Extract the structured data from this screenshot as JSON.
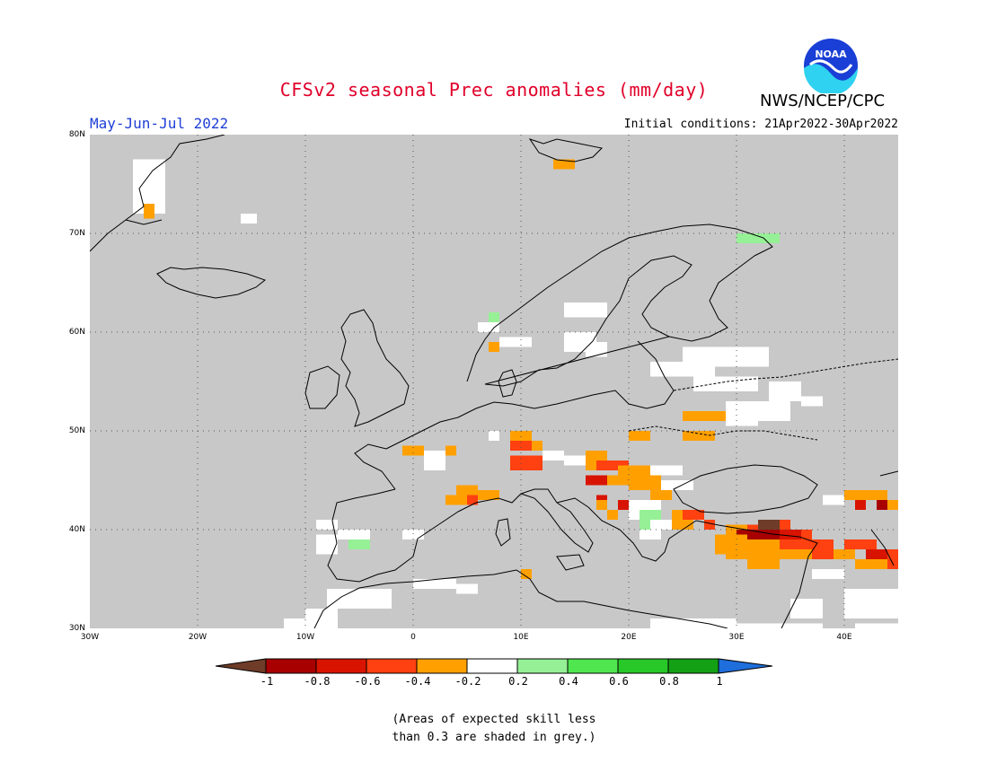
{
  "header": {
    "title": "CFSv2 seasonal Prec anomalies (mm/day)",
    "agency": "NWS/NCEP/CPC",
    "period": "May-Jun-Jul 2022",
    "initial_conditions": "Initial conditions: 21Apr2022-30Apr2022",
    "logo_text": "NOAA"
  },
  "map": {
    "lon_range": [
      -30,
      45
    ],
    "lat_range": [
      30,
      80
    ],
    "lat_labels": [
      "80N",
      "70N",
      "60N",
      "50N",
      "40N",
      "30N"
    ],
    "lon_labels": [
      "30W",
      "20W",
      "10W",
      "0",
      "10E",
      "20E",
      "30E",
      "40E"
    ],
    "colors": {
      "grey_mask": "#c8c8c8",
      "neutral": "#ffffff",
      "m02": "#ffa000",
      "m04": "#ff4010",
      "m06": "#d81400",
      "m08": "#a80000",
      "m1": "#6e3c28",
      "p02": "#96f096",
      "p04": "#50e650",
      "p06": "#28c828",
      "p08": "#14a014",
      "p1": "#1e6edc"
    }
  },
  "colorbar": {
    "ticks": [
      "-1",
      "-0.8",
      "-0.6",
      "-0.4",
      "-0.2",
      "0.2",
      "0.4",
      "0.6",
      "0.8",
      "1"
    ],
    "colors": [
      "#6e3c28",
      "#a80000",
      "#d81400",
      "#ff4010",
      "#ffa000",
      "#ffffff",
      "#96f096",
      "#50e650",
      "#28c828",
      "#14a014",
      "#1e6edc"
    ]
  },
  "footnote": {
    "line1": "(Areas of expected skill less",
    "line2": "than 0.3 are shaded in grey.)"
  }
}
